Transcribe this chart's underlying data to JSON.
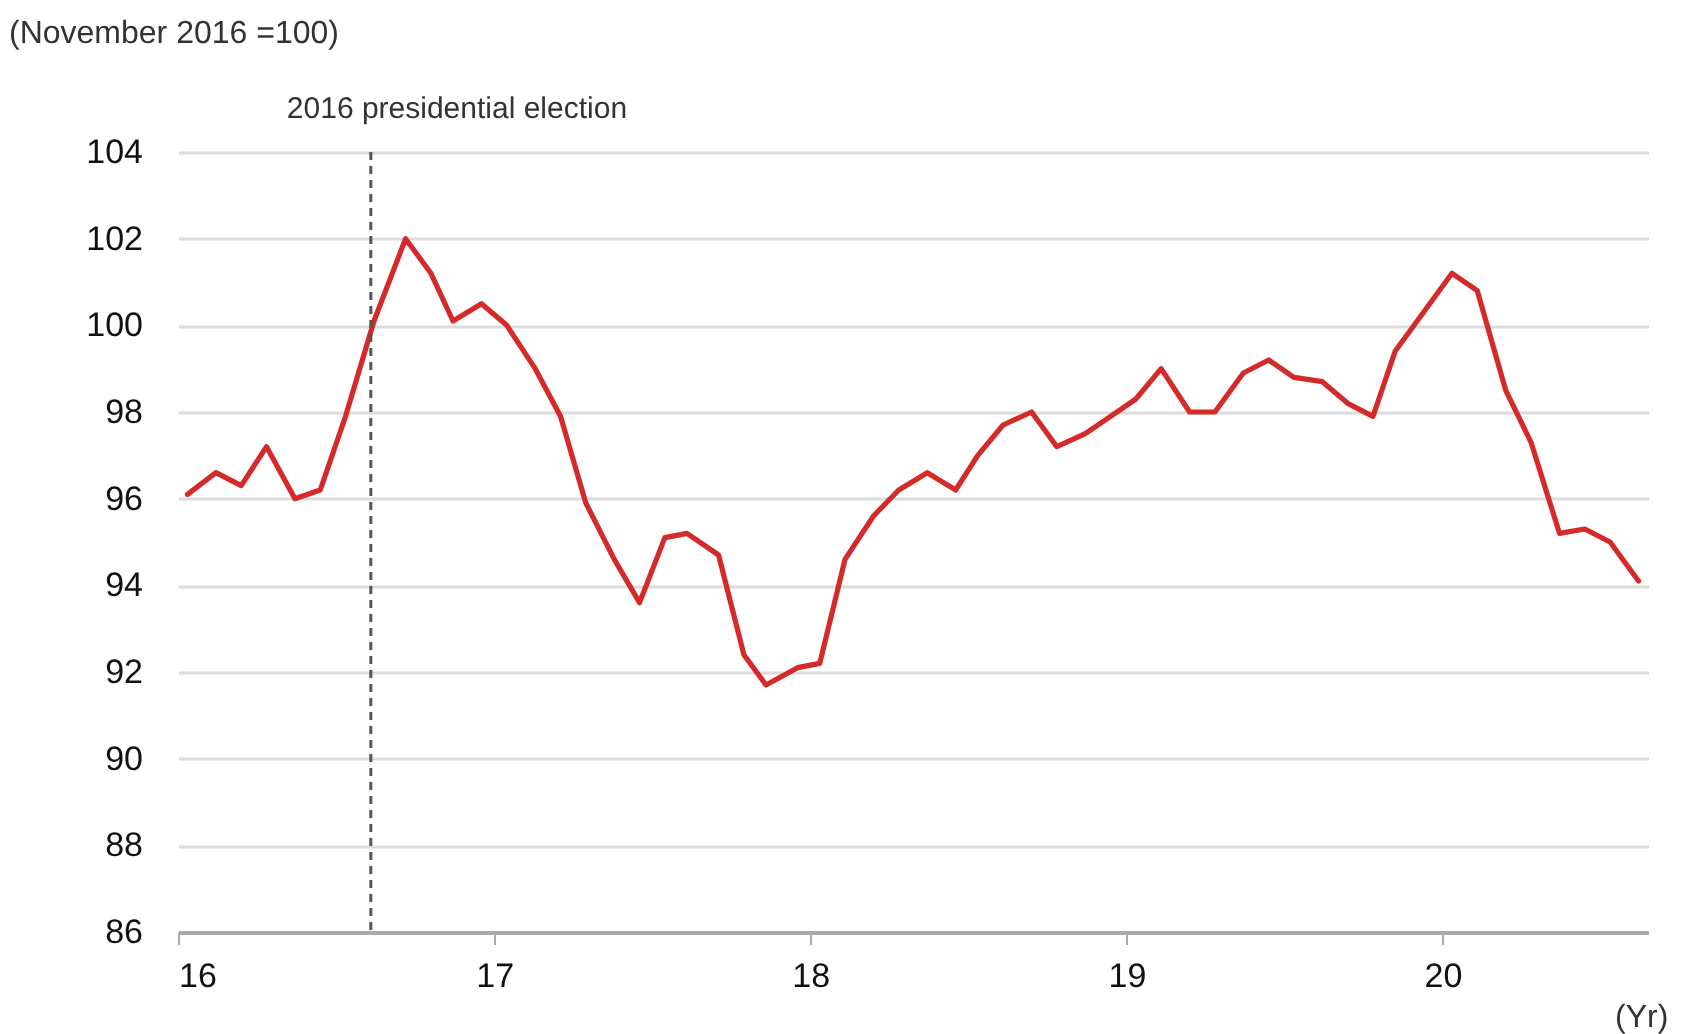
{
  "chart_data": {
    "type": "line",
    "ylabel": "(November 2016 =100)",
    "xlabel": "(Yr)",
    "x": [
      16.03,
      16.12,
      16.2,
      16.28,
      16.37,
      16.45,
      16.53,
      16.62,
      16.72,
      16.8,
      16.87,
      16.96,
      17.04,
      17.13,
      17.21,
      17.29,
      17.38,
      17.46,
      17.54,
      17.61,
      17.71,
      17.79,
      17.86,
      17.96,
      18.03,
      18.11,
      18.2,
      18.28,
      18.37,
      18.46,
      18.53,
      18.61,
      18.7,
      18.78,
      18.87,
      18.95,
      19.03,
      19.11,
      19.2,
      19.28,
      19.37,
      19.45,
      19.53,
      19.62,
      19.7,
      19.78,
      19.85,
      19.94,
      20.03,
      20.11,
      20.2,
      20.28,
      20.37,
      20.45,
      20.53,
      20.62
    ],
    "series": [
      {
        "color": "#d42a2a",
        "values": [
          96.1,
          96.6,
          96.3,
          97.2,
          96.0,
          96.2,
          97.9,
          100.1,
          102.0,
          101.2,
          100.1,
          100.5,
          100.0,
          99.0,
          97.9,
          95.9,
          94.6,
          93.6,
          95.1,
          95.2,
          94.7,
          92.4,
          91.7,
          92.1,
          92.2,
          94.6,
          95.6,
          96.2,
          96.6,
          96.2,
          97.0,
          97.7,
          98.0,
          97.2,
          97.5,
          97.9,
          98.3,
          99.0,
          98.0,
          98.0,
          98.9,
          99.2,
          98.8,
          98.7,
          98.2,
          97.9,
          99.4,
          100.3,
          101.2,
          100.8,
          98.5,
          97.3,
          95.2,
          95.3,
          95.0,
          94.1
        ]
      }
    ],
    "xlim": [
      16,
      20.65
    ],
    "xticks": [
      16,
      17,
      18,
      19,
      20
    ],
    "ylim": [
      86,
      104
    ],
    "yticks": [
      86,
      88,
      90,
      92,
      94,
      96,
      98,
      100,
      102,
      104
    ],
    "grid": "y",
    "marker": "none",
    "line_style": "solid",
    "ref_lines": [
      {
        "axis": "x",
        "value": 16.61,
        "label": "2016 presidential election",
        "color": "#555555",
        "line_style": "dashed"
      }
    ]
  }
}
